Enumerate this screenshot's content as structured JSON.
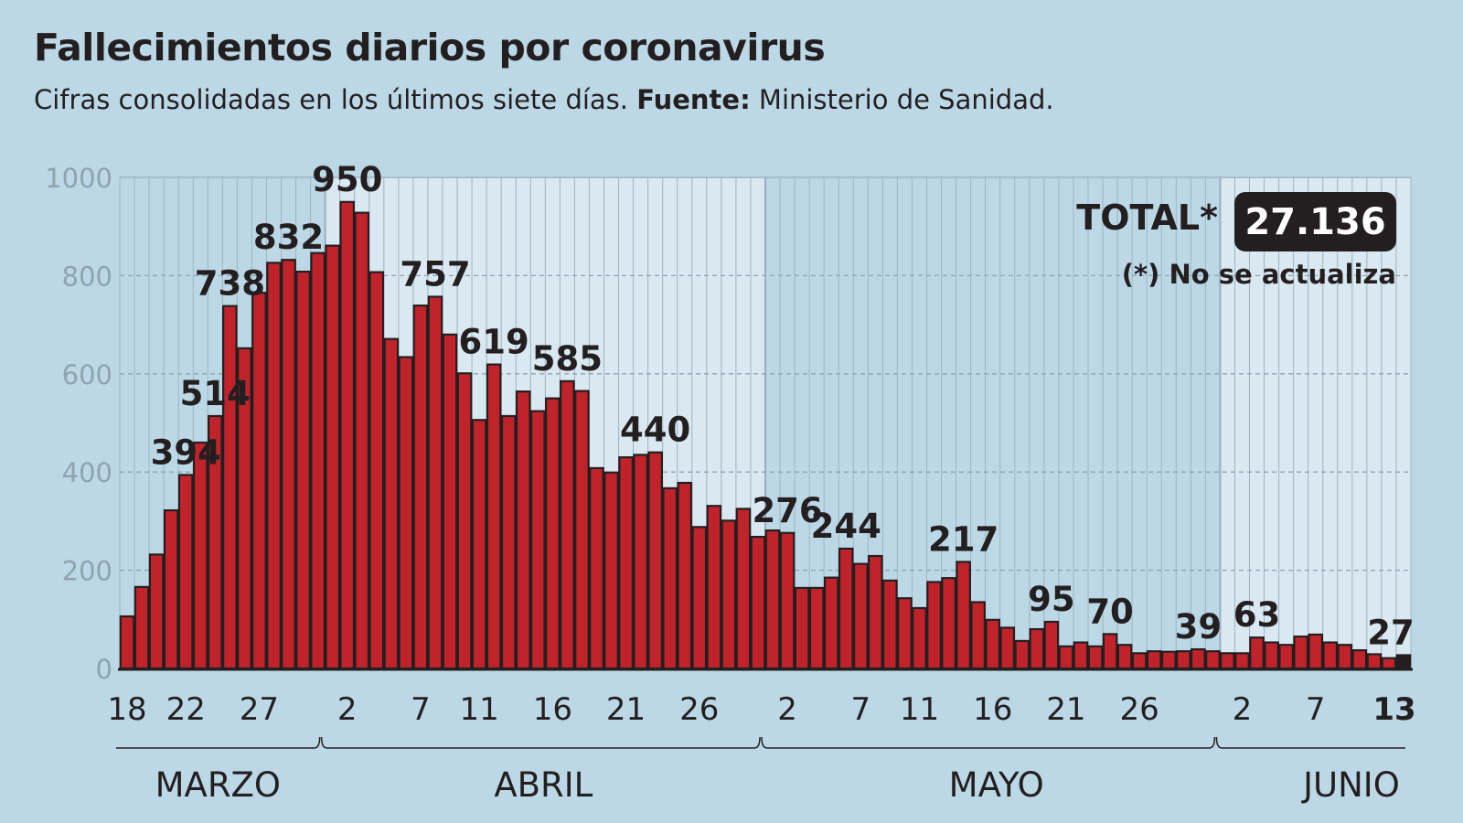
{
  "title": "Fallecimientos diarios por coronavirus",
  "subtitle": {
    "text": "Cifras consolidadas en los últimos siete días.",
    "source_label": "Fuente:",
    "source": "Ministerio de Sanidad."
  },
  "total": {
    "label": "TOTAL*",
    "value": "27.136",
    "footnote": "(*) No se actualiza"
  },
  "colors": {
    "bar": "#c1232b",
    "last_bar": "#231f20",
    "background": "#bcd8e6",
    "band_light": "#d9e8f1",
    "outline": "#231f20"
  },
  "chart_data": {
    "type": "bar",
    "title": "Fallecimientos diarios por coronavirus",
    "ylim": [
      0,
      1000
    ],
    "yticks": [
      "0",
      "200",
      "400",
      "600",
      "800",
      "1000"
    ],
    "grid": true,
    "months": [
      {
        "name": "MARZO",
        "start_day": 18,
        "days": [
          106,
          166,
          232,
          322,
          394,
          460,
          514,
          738,
          652,
          765,
          826,
          832,
          808,
          846
        ],
        "ticks": [
          "18",
          "22",
          "27"
        ]
      },
      {
        "name": "ABRIL",
        "start_day": 1,
        "days": [
          861,
          950,
          928,
          807,
          671,
          634,
          739,
          757,
          680,
          601,
          506,
          619,
          514,
          564,
          524,
          550,
          585,
          565,
          408,
          399,
          430,
          435,
          440,
          367,
          378,
          288,
          331,
          301,
          325,
          268
        ],
        "ticks": [
          "2",
          "7",
          "11",
          "16",
          "21",
          "26"
        ]
      },
      {
        "name": "MAYO",
        "start_day": 1,
        "days": [
          281,
          276,
          164,
          164,
          185,
          244,
          213,
          229,
          179,
          143,
          123,
          176,
          184,
          217,
          135,
          99,
          83,
          56,
          80,
          95,
          45,
          53,
          45,
          70,
          48,
          31,
          35,
          34,
          35,
          39,
          35
        ],
        "ticks": [
          "2",
          "7",
          "11",
          "16",
          "21",
          "26"
        ]
      },
      {
        "name": "JUNIO",
        "start_day": 1,
        "days": [
          31,
          31,
          63,
          53,
          48,
          65,
          69,
          53,
          48,
          37,
          29,
          21,
          27
        ],
        "ticks": [
          "2",
          "7",
          "13"
        ]
      }
    ],
    "value_labels": [
      {
        "month": 0,
        "day": "22",
        "text": "394"
      },
      {
        "month": 0,
        "day": "24",
        "text": "514"
      },
      {
        "month": 0,
        "day": "25",
        "text": "738"
      },
      {
        "month": 0,
        "day": "29",
        "text": "832"
      },
      {
        "month": 1,
        "day": "2",
        "text": "950",
        "bold": true
      },
      {
        "month": 1,
        "day": "8",
        "text": "757"
      },
      {
        "month": 1,
        "day": "12",
        "text": "619"
      },
      {
        "month": 1,
        "day": "17",
        "text": "585"
      },
      {
        "month": 1,
        "day": "23",
        "text": "440"
      },
      {
        "month": 2,
        "day": "2",
        "text": "276"
      },
      {
        "month": 2,
        "day": "6",
        "text": "244"
      },
      {
        "month": 2,
        "day": "14",
        "text": "217"
      },
      {
        "month": 2,
        "day": "20",
        "text": "95"
      },
      {
        "month": 2,
        "day": "24",
        "text": "70"
      },
      {
        "month": 2,
        "day": "30",
        "text": "39"
      },
      {
        "month": 3,
        "day": "3",
        "text": "63"
      },
      {
        "month": 3,
        "day": "13",
        "text": "27",
        "bold": true
      }
    ],
    "highlight_last": "13"
  }
}
